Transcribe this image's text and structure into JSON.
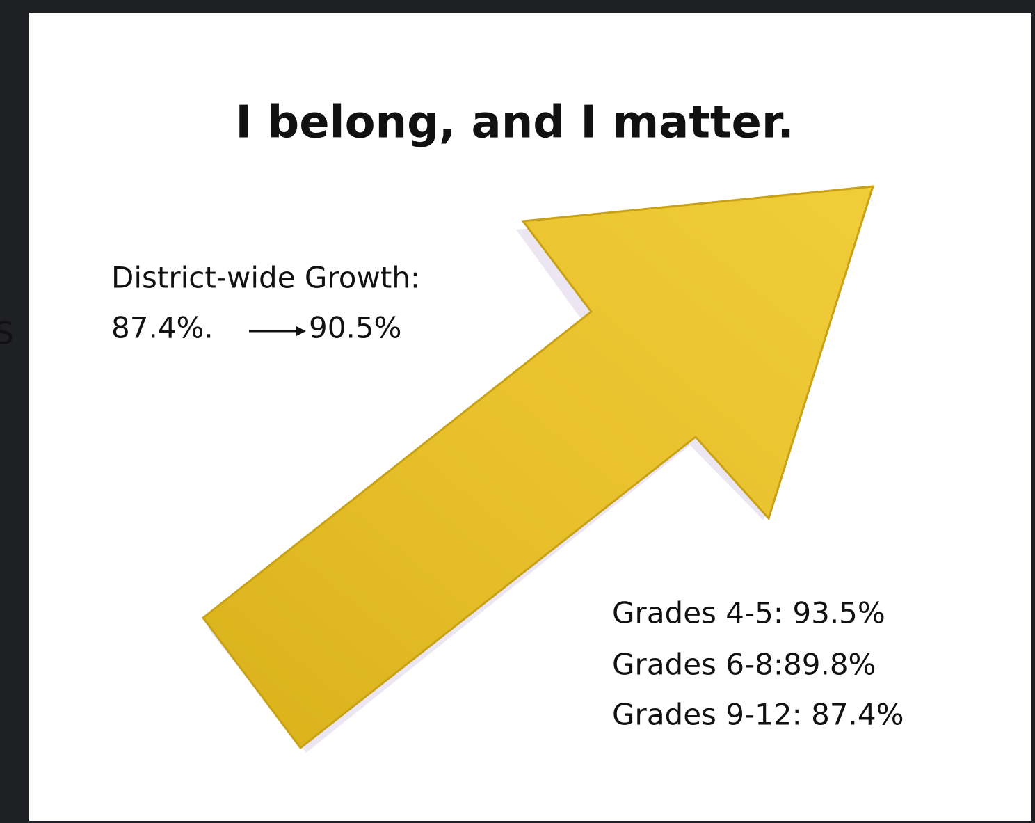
{
  "edge_text": "S",
  "title": "I belong, and I matter.",
  "growth": {
    "label": "District-wide Growth:",
    "from": "87.4%.",
    "to": "90.5%"
  },
  "grades": [
    "Grades 4-5: 93.5%",
    "Grades 6-8:89.8%",
    "Grades 9-12: 87.4%"
  ]
}
